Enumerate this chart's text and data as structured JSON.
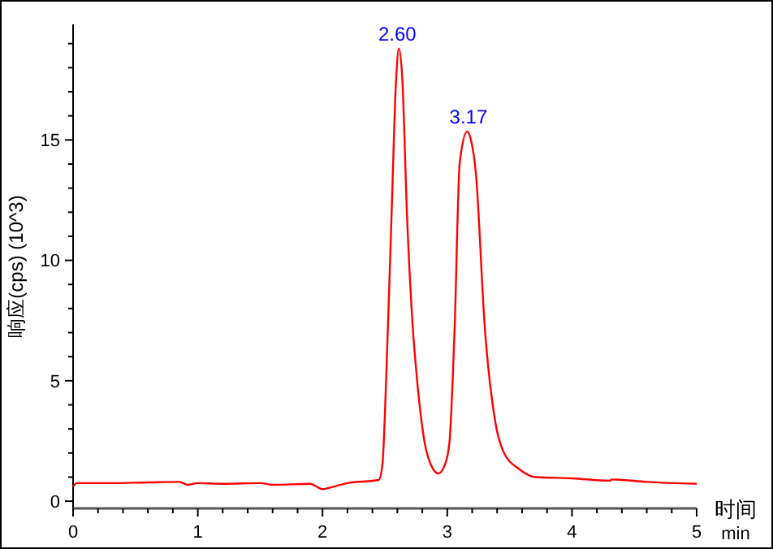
{
  "chart_data": {
    "type": "line",
    "xlabel": "时间\nmin",
    "ylabel": "响应(cps) (10^3)",
    "x": [
      0,
      0.03,
      0.3,
      0.6,
      0.85,
      0.92,
      1.0,
      1.2,
      1.5,
      1.6,
      1.9,
      2.0,
      2.05,
      2.2,
      2.45,
      2.48,
      2.51,
      2.553,
      2.59,
      2.613,
      2.64,
      2.678,
      2.72,
      2.757,
      2.82,
      2.88,
      2.93,
      2.98,
      3.017,
      3.06,
      3.1,
      3.16,
      3.19,
      3.23,
      3.3,
      3.385,
      3.45,
      3.58,
      3.71,
      4.0,
      4.3,
      4.32,
      4.6,
      5.0
    ],
    "series": [
      {
        "color": "#ff0000",
        "values": [
          0.6,
          0.75,
          0.75,
          0.78,
          0.8,
          0.68,
          0.75,
          0.72,
          0.75,
          0.68,
          0.72,
          0.5,
          0.55,
          0.75,
          0.88,
          1.5,
          5,
          11.8,
          17.5,
          18.8,
          17.5,
          11.8,
          7.5,
          5.1,
          2.4,
          1.4,
          1.15,
          1.5,
          2.4,
          7.3,
          14.05,
          15.35,
          15,
          13.6,
          7.3,
          3.3,
          2.06,
          1.32,
          1,
          0.95,
          0.85,
          0.9,
          0.8,
          0.72
        ]
      }
    ],
    "xlim": [
      0,
      5
    ],
    "xticks": [
      0,
      {
        "value": 0.2,
        "label": null
      },
      {
        "value": 0.4,
        "label": null
      },
      {
        "value": 0.6,
        "label": null
      },
      {
        "value": 0.8,
        "label": null
      },
      1,
      {
        "value": 1.2,
        "label": null
      },
      {
        "value": 1.4,
        "label": null
      },
      {
        "value": 1.6,
        "label": null
      },
      {
        "value": 1.8,
        "label": null
      },
      2,
      {
        "value": 2.2,
        "label": null
      },
      {
        "value": 2.4,
        "label": null
      },
      {
        "value": 2.6,
        "label": null
      },
      {
        "value": 2.8,
        "label": null
      },
      3,
      {
        "value": 3.2,
        "label": null
      },
      {
        "value": 3.4,
        "label": null
      },
      {
        "value": 3.6,
        "label": null
      },
      {
        "value": 3.8,
        "label": null
      },
      4,
      {
        "value": 4.2,
        "label": null
      },
      {
        "value": 4.4,
        "label": null
      },
      {
        "value": 4.6,
        "label": null
      },
      {
        "value": 4.8,
        "label": null
      },
      5
    ],
    "ylim": [
      -0.3,
      19.8
    ],
    "yticks": [
      0,
      {
        "value": 1,
        "label": null
      },
      {
        "value": 2,
        "label": null
      },
      {
        "value": 3,
        "label": null
      },
      {
        "value": 4,
        "label": null
      },
      5,
      {
        "value": 6,
        "label": null
      },
      {
        "value": 7,
        "label": null
      },
      {
        "value": 8,
        "label": null
      },
      {
        "value": 9,
        "label": null
      },
      10,
      {
        "value": 11,
        "label": null
      },
      {
        "value": 12,
        "label": null
      },
      {
        "value": 13,
        "label": null
      },
      {
        "value": 14,
        "label": null
      },
      15,
      {
        "value": 16,
        "label": null
      },
      {
        "value": 17,
        "label": null
      },
      {
        "value": 18,
        "label": null
      },
      {
        "value": 19,
        "label": null
      }
    ],
    "annotations": [
      {
        "text": "2.60",
        "x": 2.6,
        "y": 18.8
      },
      {
        "text": "3.17",
        "x": 3.17,
        "y": 15.35
      }
    ],
    "grid": false,
    "marker": "none",
    "line_style": "solid"
  }
}
